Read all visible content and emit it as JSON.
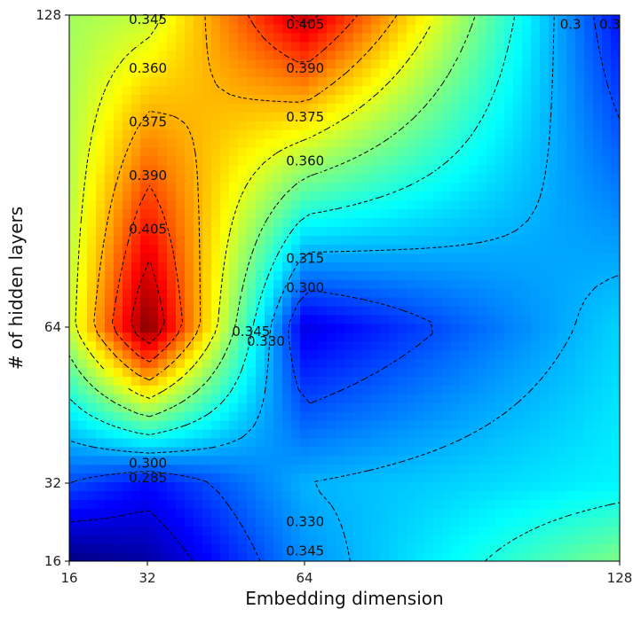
{
  "chart_data": {
    "type": "heatmap",
    "subtype": "filled contour (interpolated)",
    "colormap": "jet",
    "xlabel": "Embedding dimension",
    "ylabel": "# of hidden layers",
    "x_ticks": [
      16,
      32,
      64,
      128
    ],
    "y_ticks": [
      16,
      32,
      64,
      128
    ],
    "x_range": [
      16,
      128
    ],
    "y_range": [
      16,
      128
    ],
    "color_range": [
      0.27,
      0.42
    ],
    "grid": false,
    "legend": "none",
    "contour_levels": [
      "0.285",
      "0.300",
      "0.315",
      "0.330",
      "0.345",
      "0.360",
      "0.375",
      "0.390",
      "0.405"
    ],
    "contour_labels": [
      {
        "text": "0.345",
        "x": 32,
        "y": 127
      },
      {
        "text": "0.405",
        "x": 64,
        "y": 126
      },
      {
        "text": "0.390",
        "x": 64,
        "y": 117
      },
      {
        "text": "0.375",
        "x": 64,
        "y": 107
      },
      {
        "text": "0.360",
        "x": 64,
        "y": 98
      },
      {
        "text": "0.360",
        "x": 32,
        "y": 117
      },
      {
        "text": "0.375",
        "x": 32,
        "y": 106
      },
      {
        "text": "0.390",
        "x": 32,
        "y": 95
      },
      {
        "text": "0.405",
        "x": 32,
        "y": 84
      },
      {
        "text": "0.315",
        "x": 64,
        "y": 78
      },
      {
        "text": "0.300",
        "x": 64,
        "y": 72
      },
      {
        "text": "0.345",
        "x": 53,
        "y": 63
      },
      {
        "text": "0.330",
        "x": 56,
        "y": 61
      },
      {
        "text": "0.300",
        "x": 32,
        "y": 36
      },
      {
        "text": "0.285",
        "x": 32,
        "y": 33
      },
      {
        "text": "0.330",
        "x": 64,
        "y": 24
      },
      {
        "text": "0.345",
        "x": 64,
        "y": 18
      },
      {
        "text": "0.3",
        "x": 118,
        "y": 126
      },
      {
        "text": "0.3",
        "x": 126,
        "y": 126
      }
    ],
    "grid_x": [
      16,
      32,
      64,
      128
    ],
    "grid_y": [
      16,
      32,
      64,
      128
    ],
    "values": [
      [
        0.27,
        0.275,
        0.31,
        0.345
      ],
      [
        0.3,
        0.29,
        0.315,
        0.325
      ],
      [
        0.355,
        0.42,
        0.285,
        0.32
      ],
      [
        0.35,
        0.355,
        0.41,
        0.29
      ]
    ]
  }
}
